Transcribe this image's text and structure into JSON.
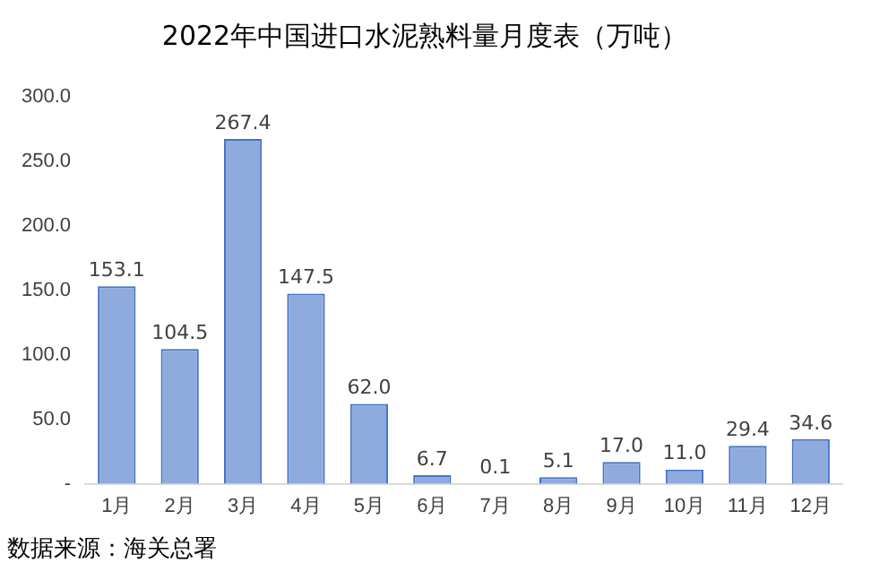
{
  "chart_data": {
    "type": "bar",
    "title": "2022年中国进口水泥熟料量月度表（万吨）",
    "categories": [
      "1月",
      "2月",
      "3月",
      "4月",
      "5月",
      "6月",
      "7月",
      "8月",
      "9月",
      "10月",
      "11月",
      "12月"
    ],
    "values": [
      153.1,
      104.5,
      267.4,
      147.5,
      62.0,
      6.7,
      0.1,
      5.1,
      17.0,
      11.0,
      29.4,
      34.6
    ],
    "value_labels": [
      "153.1",
      "104.5",
      "267.4",
      "147.5",
      "62.0",
      "6.7",
      "0.1",
      "5.1",
      "17.0",
      "11.0",
      "29.4",
      "34.6"
    ],
    "color": "#8faadc",
    "ylim": [
      0,
      300
    ],
    "yticks": [
      {
        "value": 0,
        "label": "-"
      },
      {
        "value": 50,
        "label": "50.0"
      },
      {
        "value": 100,
        "label": "100.0"
      },
      {
        "value": 150,
        "label": "150.0"
      },
      {
        "value": 200,
        "label": "200.0"
      },
      {
        "value": 250,
        "label": "250.0"
      },
      {
        "value": 300,
        "label": "300.0"
      }
    ],
    "grid": false,
    "legend": false,
    "annotations": [
      "数据来源：海关总署"
    ]
  }
}
